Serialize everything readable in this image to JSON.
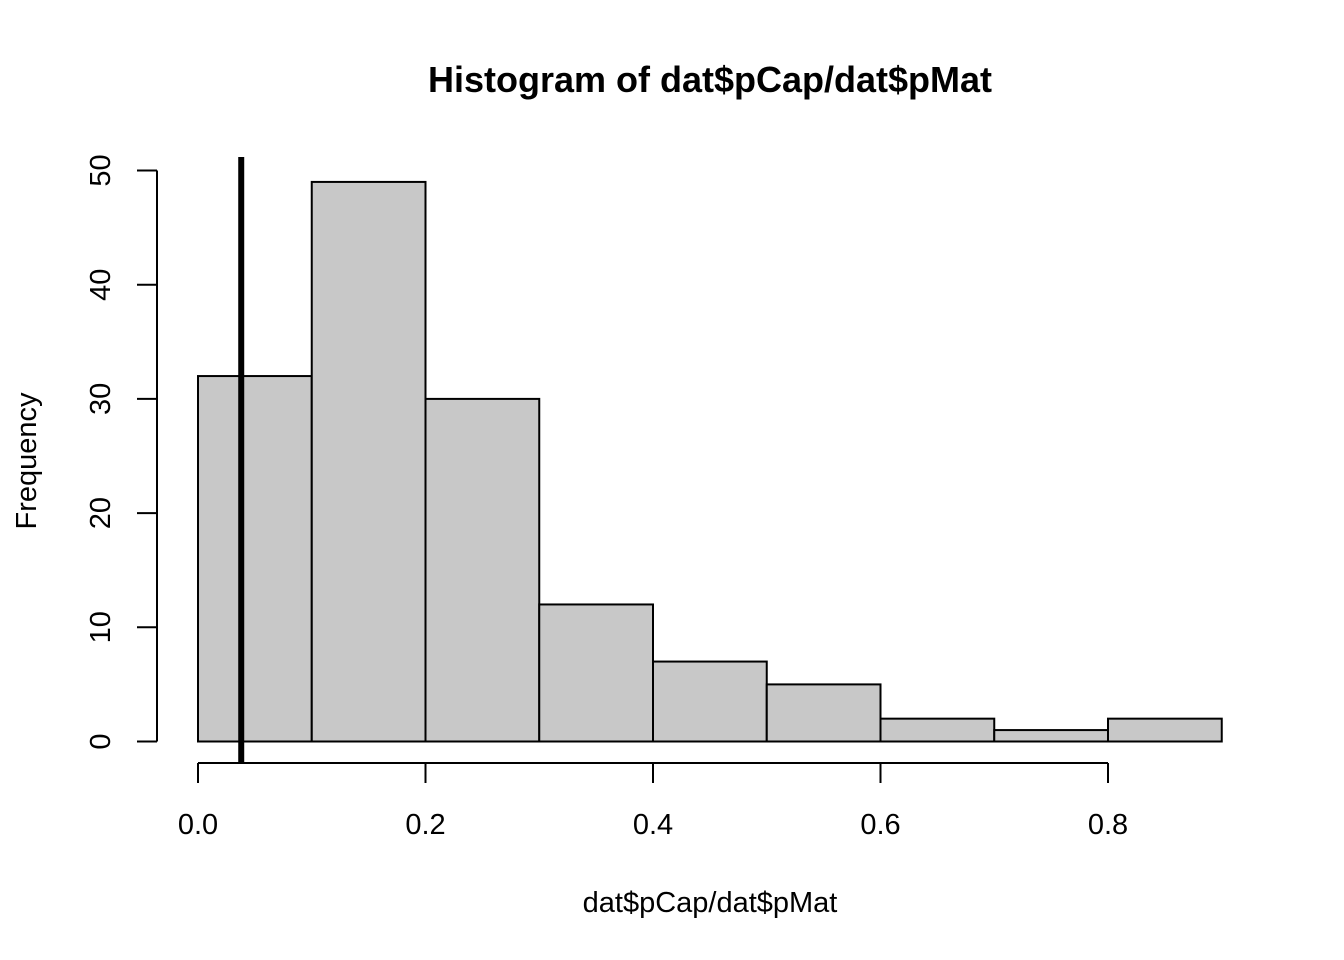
{
  "chart_data": {
    "type": "bar",
    "title": "Histogram of dat$pCap/dat$pMat",
    "xlabel": "dat$pCap/dat$pMat",
    "ylabel": "Frequency",
    "bin_edges": [
      0.0,
      0.1,
      0.2,
      0.3,
      0.4,
      0.5,
      0.6,
      0.7,
      0.8,
      0.9
    ],
    "values": [
      32,
      49,
      30,
      12,
      7,
      5,
      2,
      1,
      2
    ],
    "xlim": [
      0.0,
      0.9
    ],
    "ylim": [
      0,
      50
    ],
    "x_ticks": [
      0.0,
      0.2,
      0.4,
      0.6,
      0.8
    ],
    "x_tick_labels": [
      "0.0",
      "0.2",
      "0.4",
      "0.6",
      "0.8"
    ],
    "y_ticks": [
      0,
      10,
      20,
      30,
      40,
      50
    ],
    "y_tick_labels": [
      "0",
      "10",
      "20",
      "30",
      "40",
      "50"
    ],
    "reference_line": {
      "x": 0.038,
      "color": "#000000"
    },
    "bar_fill": "#c8c8c8",
    "bar_stroke": "#000000",
    "grid": false,
    "legend": "none"
  }
}
